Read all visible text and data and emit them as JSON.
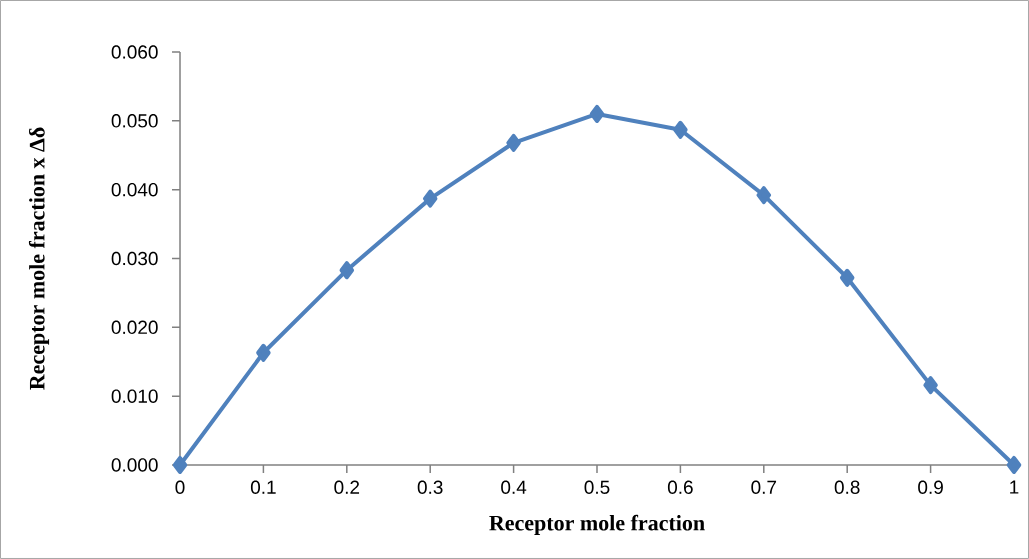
{
  "chart_data": {
    "type": "line",
    "xlabel": "Receptor mole fraction",
    "ylabel": "Receptor mole fraction x Δδ",
    "x": [
      0,
      0.1,
      0.2,
      0.3,
      0.4,
      0.5,
      0.6,
      0.7,
      0.8,
      0.9,
      1
    ],
    "series": [
      {
        "color": "#4f81bd",
        "values": [
          0,
          0.0163,
          0.0283,
          0.0387,
          0.0468,
          0.051,
          0.0487,
          0.0392,
          0.0272,
          0.0116,
          0
        ]
      }
    ],
    "xlim": [
      0,
      1
    ],
    "ylim": [
      0,
      0.06
    ],
    "xticks": [
      0,
      0.1,
      0.2,
      0.3,
      0.4,
      0.5,
      0.6,
      0.7,
      0.8,
      0.9,
      1
    ],
    "yticks": [
      {
        "value": 0,
        "label": "0.000"
      },
      {
        "value": 0.01,
        "label": "0.010"
      },
      {
        "value": 0.02,
        "label": "0.020"
      },
      {
        "value": 0.03,
        "label": "0.030"
      },
      {
        "value": 0.04,
        "label": "0.040"
      },
      {
        "value": 0.05,
        "label": "0.050"
      },
      {
        "value": 0.06,
        "label": "0.060"
      }
    ],
    "marker": "diamond",
    "line_style": "solid"
  }
}
